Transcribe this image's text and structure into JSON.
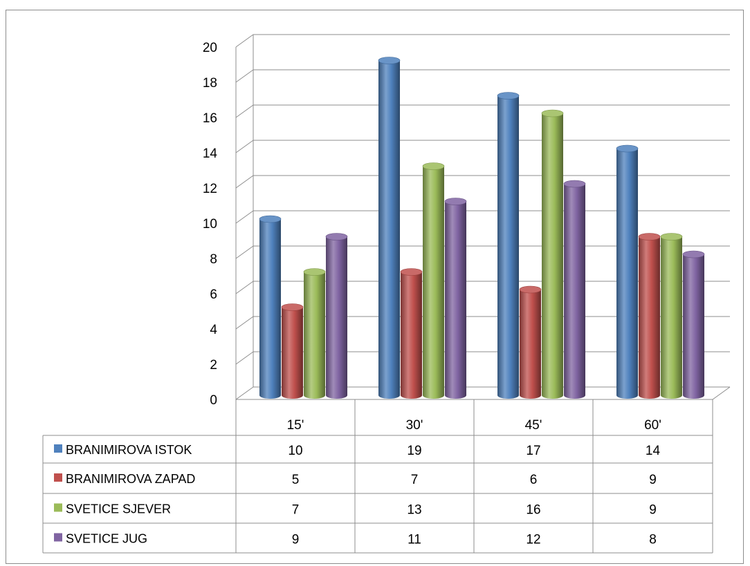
{
  "chart_data": {
    "type": "bar",
    "categories": [
      "15'",
      "30'",
      "45'",
      "60'"
    ],
    "series": [
      {
        "name": "BRANIMIROVA ISTOK",
        "values": [
          10,
          19,
          17,
          14
        ],
        "color": "#4f81bd"
      },
      {
        "name": "BRANIMIROVA ZAPAD",
        "values": [
          5,
          7,
          6,
          9
        ],
        "color": "#c0504d"
      },
      {
        "name": "SVETICE SJEVER",
        "values": [
          7,
          13,
          16,
          9
        ],
        "color": "#9bbb59"
      },
      {
        "name": "SVETICE JUG",
        "values": [
          9,
          11,
          12,
          8
        ],
        "color": "#8064a2"
      }
    ],
    "yticks": [
      "0",
      "2",
      "4",
      "6",
      "8",
      "10",
      "12",
      "14",
      "16",
      "18",
      "20"
    ],
    "ylim": [
      0,
      20
    ],
    "grid": true,
    "style": "3d-cylinder",
    "legend": "data-table-below"
  }
}
